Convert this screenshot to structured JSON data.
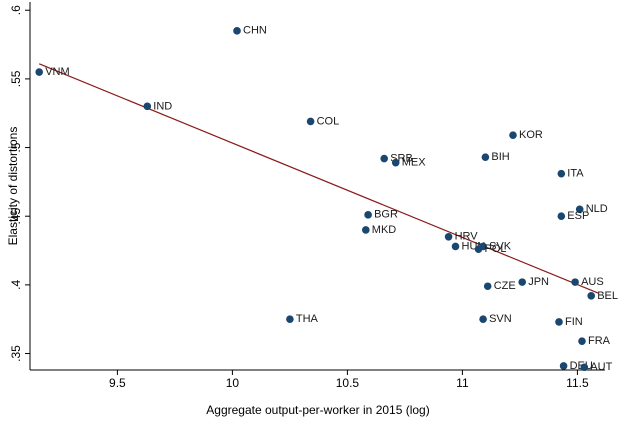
{
  "chart_data": {
    "type": "scatter",
    "xlabel": "Aggregate output-per-worker in 2015 (log)",
    "ylabel": "Elasticity of distortions",
    "labels": [
      "CHN",
      "VNM",
      "IND",
      "COL",
      "KOR",
      "SRB",
      "MEX",
      "BIH",
      "ITA",
      "NLD",
      "ESP",
      "BGR",
      "MKD",
      "HRV",
      "HUN",
      "SVK",
      "POL",
      "CZE",
      "JPN",
      "AUS",
      "BEL",
      "THA",
      "SVN",
      "FIN",
      "FRA",
      "DEU",
      "AUT"
    ],
    "x": [
      10.02,
      9.16,
      9.63,
      10.34,
      11.22,
      10.66,
      10.71,
      11.1,
      11.43,
      11.51,
      11.43,
      10.59,
      10.58,
      10.94,
      10.97,
      11.09,
      11.07,
      11.11,
      11.26,
      11.49,
      11.56,
      10.25,
      11.09,
      11.42,
      11.52,
      11.44,
      11.53
    ],
    "values": [
      0.585,
      0.555,
      0.53,
      0.519,
      0.509,
      0.492,
      0.489,
      0.493,
      0.481,
      0.455,
      0.45,
      0.451,
      0.44,
      0.435,
      0.428,
      0.428,
      0.426,
      0.399,
      0.402,
      0.402,
      0.392,
      0.375,
      0.375,
      0.373,
      0.359,
      0.341,
      0.34
    ],
    "color": "#1a476f",
    "fit": {
      "x": [
        9.16,
        11.59
      ],
      "y": [
        0.561,
        0.394
      ],
      "color": "#8b1a1a"
    },
    "xlim": [
      9.12,
      11.62
    ],
    "ylim": [
      0.338,
      0.606
    ],
    "xticks": [
      9.5,
      10,
      10.5,
      11,
      11.5
    ],
    "yticks": [
      {
        "value": 0.35,
        "label": ".35"
      },
      {
        "value": 0.4,
        "label": ".4"
      },
      {
        "value": 0.45,
        "label": ".45"
      },
      {
        "value": 0.5,
        "label": ".5"
      },
      {
        "value": 0.55,
        "label": ".55"
      },
      {
        "value": 0.6,
        "label": ".6"
      }
    ]
  }
}
